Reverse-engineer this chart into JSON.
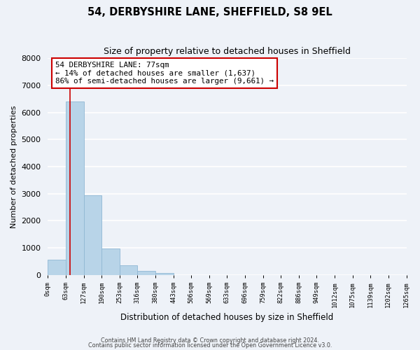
{
  "title": "54, DERBYSHIRE LANE, SHEFFIELD, S8 9EL",
  "subtitle": "Size of property relative to detached houses in Sheffield",
  "xlabel": "Distribution of detached houses by size in Sheffield",
  "ylabel": "Number of detached properties",
  "bar_heights": [
    560,
    6400,
    2950,
    970,
    370,
    160,
    80,
    0,
    0,
    0,
    0,
    0,
    0,
    0,
    0,
    0,
    0,
    0,
    0,
    0
  ],
  "bin_labels": [
    "0sqm",
    "63sqm",
    "127sqm",
    "190sqm",
    "253sqm",
    "316sqm",
    "380sqm",
    "443sqm",
    "506sqm",
    "569sqm",
    "633sqm",
    "696sqm",
    "759sqm",
    "822sqm",
    "886sqm",
    "949sqm",
    "1012sqm",
    "1075sqm",
    "1139sqm",
    "1202sqm",
    "1265sqm"
  ],
  "bar_color": "#b8d4e8",
  "bar_edge_color": "#90b8d4",
  "property_line_x": 77,
  "property_line_color": "#cc0000",
  "ylim": [
    0,
    8000
  ],
  "yticks": [
    0,
    1000,
    2000,
    3000,
    4000,
    5000,
    6000,
    7000,
    8000
  ],
  "annotation_title": "54 DERBYSHIRE LANE: 77sqm",
  "annotation_line1": "← 14% of detached houses are smaller (1,637)",
  "annotation_line2": "86% of semi-detached houses are larger (9,661) →",
  "annotation_box_facecolor": "#ffffff",
  "annotation_box_edgecolor": "#cc0000",
  "footer_line1": "Contains HM Land Registry data © Crown copyright and database right 2024.",
  "footer_line2": "Contains public sector information licensed under the Open Government Licence v3.0.",
  "background_color": "#eef2f8",
  "grid_color": "#ffffff",
  "bin_width": 63,
  "num_bins": 20
}
